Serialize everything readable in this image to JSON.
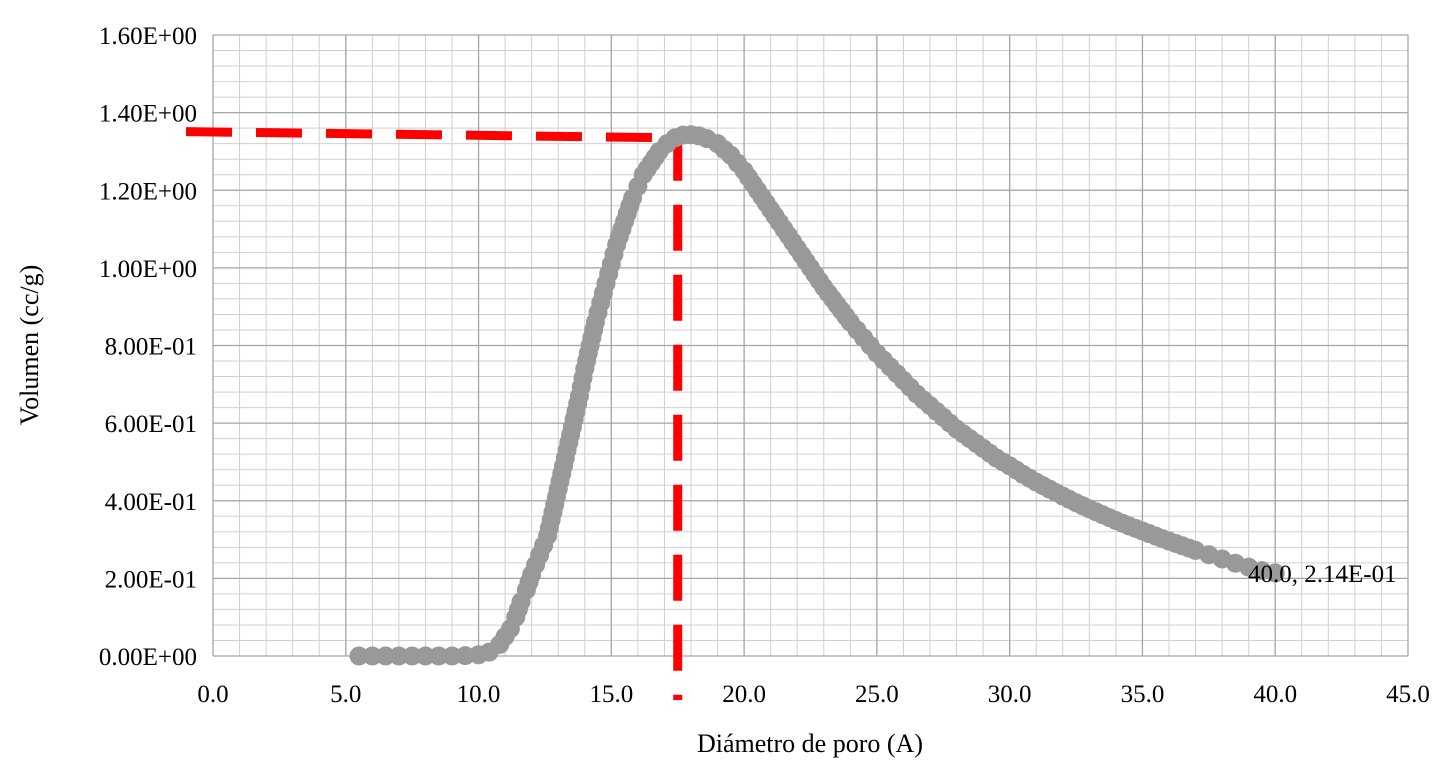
{
  "chart_data": {
    "type": "scatter",
    "xlabel": "Diámetro de poro (A)",
    "ylabel": "Volumen (cc/g)",
    "xlim": [
      0,
      45
    ],
    "ylim": [
      0,
      1.6
    ],
    "x_ticks": [
      "0.0",
      "5.0",
      "10.0",
      "15.0",
      "20.0",
      "25.0",
      "30.0",
      "35.0",
      "40.0",
      "45.0"
    ],
    "y_ticks": [
      "0.00E+00",
      "2.00E-01",
      "4.00E-01",
      "6.00E-01",
      "8.00E-01",
      "1.00E+00",
      "1.20E+00",
      "1.40E+00",
      "1.60E+00"
    ],
    "grid": true,
    "grid_minor": true,
    "series": [
      {
        "color": "#999999",
        "marker": "circle",
        "points": [
          [
            5.5,
            0.0
          ],
          [
            6.0,
            0.0
          ],
          [
            6.5,
            0.0
          ],
          [
            7.0,
            0.0
          ],
          [
            7.5,
            0.0
          ],
          [
            8.0,
            0.0
          ],
          [
            8.5,
            0.0
          ],
          [
            9.0,
            0.0
          ],
          [
            9.5,
            0.001
          ],
          [
            10.0,
            0.003
          ],
          [
            10.4,
            0.01
          ],
          [
            10.8,
            0.03
          ],
          [
            11.0,
            0.05
          ],
          [
            11.2,
            0.07
          ],
          [
            11.4,
            0.1
          ],
          [
            11.6,
            0.14
          ],
          [
            11.8,
            0.17
          ],
          [
            12.0,
            0.21
          ],
          [
            12.3,
            0.26
          ],
          [
            12.6,
            0.31
          ],
          [
            12.8,
            0.37
          ],
          [
            13.0,
            0.43
          ],
          [
            13.2,
            0.49
          ],
          [
            13.4,
            0.55
          ],
          [
            13.6,
            0.61
          ],
          [
            13.8,
            0.67
          ],
          [
            14.0,
            0.74
          ],
          [
            14.2,
            0.8
          ],
          [
            14.4,
            0.86
          ],
          [
            14.6,
            0.91
          ],
          [
            14.8,
            0.96
          ],
          [
            15.0,
            1.01
          ],
          [
            15.2,
            1.06
          ],
          [
            15.4,
            1.1
          ],
          [
            15.6,
            1.14
          ],
          [
            15.8,
            1.18
          ],
          [
            16.0,
            1.21
          ],
          [
            16.2,
            1.24
          ],
          [
            16.5,
            1.27
          ],
          [
            16.8,
            1.3
          ],
          [
            17.1,
            1.32
          ],
          [
            17.4,
            1.335
          ],
          [
            17.7,
            1.342
          ],
          [
            18.0,
            1.343
          ],
          [
            18.3,
            1.34
          ],
          [
            18.6,
            1.333
          ],
          [
            19.0,
            1.32
          ],
          [
            19.5,
            1.29
          ],
          [
            20.0,
            1.25
          ],
          [
            20.5,
            1.2
          ],
          [
            21.0,
            1.15
          ],
          [
            21.5,
            1.1
          ],
          [
            22.0,
            1.05
          ],
          [
            22.5,
            1.0
          ],
          [
            23.0,
            0.95
          ],
          [
            23.5,
            0.905
          ],
          [
            24.0,
            0.86
          ],
          [
            24.5,
            0.82
          ],
          [
            25.0,
            0.78
          ],
          [
            25.5,
            0.745
          ],
          [
            26.0,
            0.71
          ],
          [
            26.5,
            0.675
          ],
          [
            27.0,
            0.645
          ],
          [
            27.5,
            0.615
          ],
          [
            28.0,
            0.585
          ],
          [
            28.5,
            0.56
          ],
          [
            29.0,
            0.535
          ],
          [
            29.5,
            0.51
          ],
          [
            30.0,
            0.49
          ],
          [
            30.5,
            0.468
          ],
          [
            31.0,
            0.448
          ],
          [
            31.5,
            0.43
          ],
          [
            32.0,
            0.412
          ],
          [
            32.5,
            0.395
          ],
          [
            33.0,
            0.379
          ],
          [
            33.5,
            0.364
          ],
          [
            34.0,
            0.349
          ],
          [
            34.5,
            0.335
          ],
          [
            35.0,
            0.322
          ],
          [
            35.5,
            0.309
          ],
          [
            36.0,
            0.296
          ],
          [
            36.5,
            0.284
          ],
          [
            37.0,
            0.272
          ],
          [
            37.5,
            0.261
          ],
          [
            38.0,
            0.25
          ],
          [
            38.5,
            0.239
          ],
          [
            39.0,
            0.229
          ],
          [
            39.5,
            0.22
          ],
          [
            40.0,
            0.214
          ]
        ]
      }
    ],
    "reference_lines": {
      "color": "#ff0000",
      "style": "dashed",
      "horizontal_y": 1.343,
      "vertical_x": 17.5
    },
    "annotations": [
      {
        "text": "40.0, 2.14E-01",
        "x": 40.0,
        "y": 0.214
      }
    ]
  }
}
